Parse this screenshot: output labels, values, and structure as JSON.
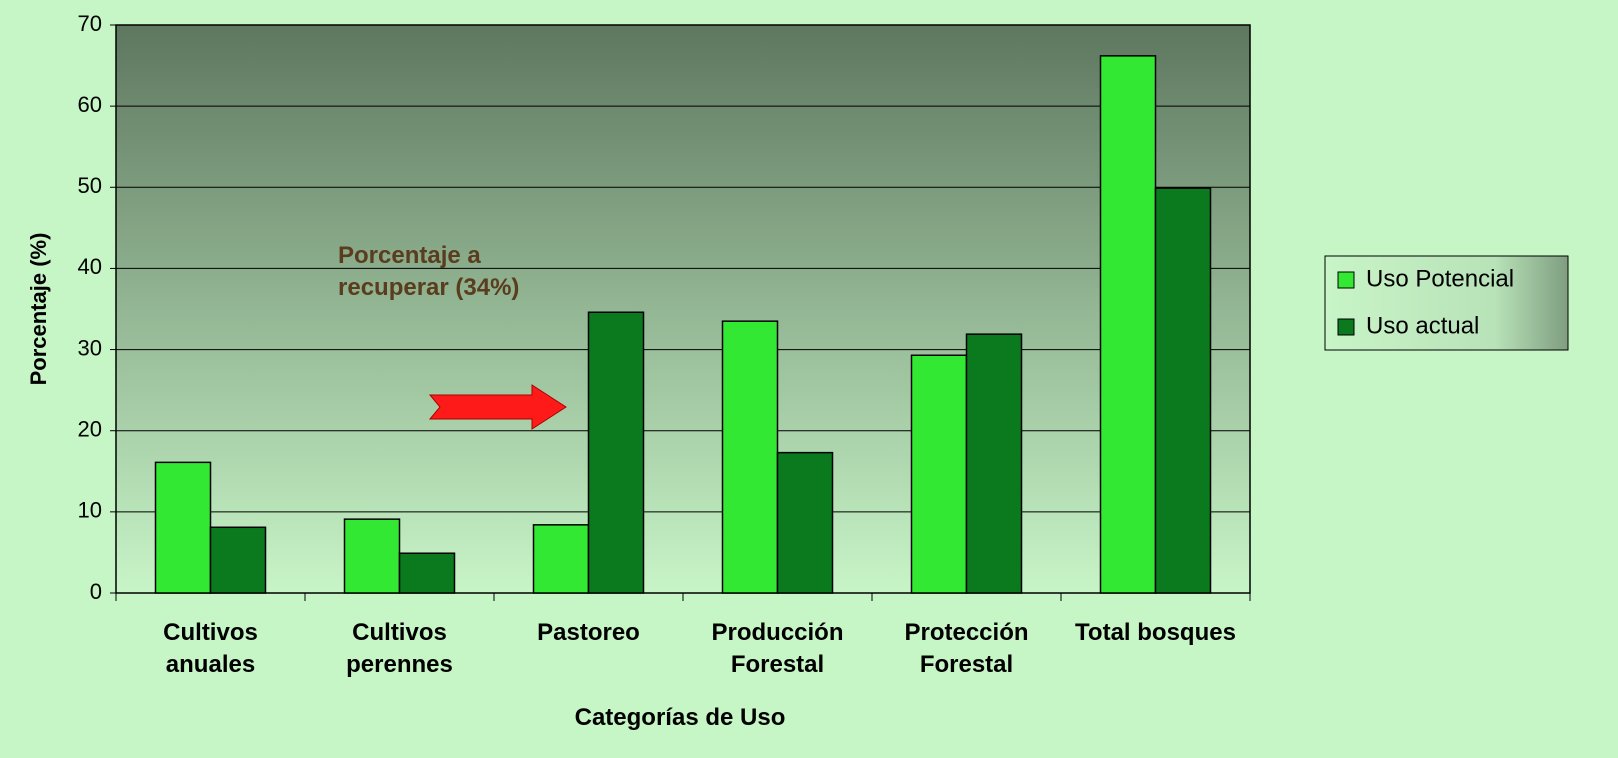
{
  "chart_data": {
    "type": "bar",
    "categories": [
      "Cultivos anuales",
      "Cultivos perennes",
      "Pastoreo",
      "Producción Forestal",
      "Protección Forestal",
      "Total bosques"
    ],
    "series": [
      {
        "name": "Uso Potencial",
        "color": "#33e833",
        "values": [
          16.1,
          9.1,
          8.4,
          33.5,
          29.3,
          66.2
        ]
      },
      {
        "name": "Uso actual",
        "color": "#0b7a1e",
        "values": [
          8.1,
          4.9,
          34.6,
          17.3,
          31.9,
          49.9
        ]
      }
    ],
    "ylim": [
      0,
      70
    ],
    "yticks": [
      0,
      10,
      20,
      30,
      40,
      50,
      60,
      70
    ],
    "grid": true,
    "ylabel": "Porcentaje (%)",
    "xlabel": "Categorías de Uso",
    "annotation": "Porcentaje a recuperar (34%)",
    "legend": "right"
  }
}
